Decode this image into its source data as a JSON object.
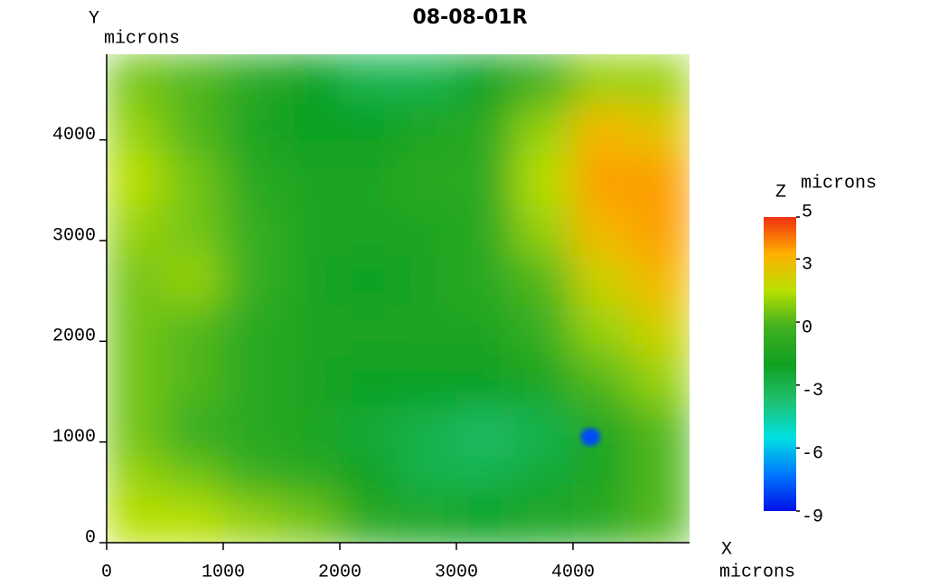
{
  "chart_data": {
    "type": "heatmap",
    "title": "08-08-01R",
    "x_label": "X",
    "x_unit": "microns",
    "y_label": "Y",
    "y_unit": "microns",
    "z_label": "Z",
    "z_unit": "microns",
    "xlim": [
      0,
      5000
    ],
    "ylim": [
      0,
      4850
    ],
    "xticks": [
      0,
      1000,
      2000,
      3000,
      4000
    ],
    "yticks": [
      0,
      1000,
      2000,
      3000,
      4000
    ],
    "x": [
      250,
      750,
      1250,
      1750,
      2250,
      2750,
      3250,
      3750,
      4250,
      4750
    ],
    "y": [
      4600,
      4100,
      3600,
      3100,
      2600,
      2100,
      1600,
      1100,
      600,
      200
    ],
    "z": [
      [
        0.5,
        0,
        -1,
        -2,
        -3,
        -3,
        -2,
        -0.5,
        1,
        1
      ],
      [
        1,
        0,
        -1.5,
        -2,
        -2,
        -1.5,
        -1,
        1,
        3,
        2.5
      ],
      [
        1.5,
        0.5,
        -1,
        -1.5,
        -1.5,
        -1,
        -1,
        1.5,
        3.5,
        3.5
      ],
      [
        1,
        0.5,
        -0.5,
        -1.5,
        -1.5,
        -1.5,
        -1,
        1,
        3,
        3.5
      ],
      [
        0.5,
        1,
        -0.5,
        -1.5,
        -2,
        -1.5,
        -1,
        0,
        2,
        3
      ],
      [
        0.5,
        0,
        -1,
        -1.5,
        -1.5,
        -1.5,
        -1.5,
        -0.5,
        1,
        2
      ],
      [
        0.5,
        0,
        -1,
        -1.5,
        -2,
        -2,
        -2,
        -1.5,
        0,
        1
      ],
      [
        0.5,
        -0.5,
        -1,
        -1.5,
        -2.5,
        -3,
        -3.5,
        -3,
        -1.5,
        0
      ],
      [
        1,
        0.5,
        -0.5,
        -1,
        -2,
        -3,
        -3,
        -2.5,
        -1.5,
        0
      ],
      [
        1.5,
        1.5,
        1,
        0.5,
        -1,
        -1.5,
        -2,
        -1.5,
        -1,
        0
      ]
    ],
    "spot": {
      "x": 4150,
      "y": 1050,
      "z": -8
    },
    "zlim": [
      -9,
      5
    ],
    "zticks": [
      5,
      3,
      0,
      -3,
      -6,
      -9
    ],
    "colorscale": [
      "#0010e8",
      "#0078ff",
      "#00e0e0",
      "#20c070",
      "#10a020",
      "#40b020",
      "#b8e000",
      "#ffb000",
      "#f03010"
    ]
  }
}
